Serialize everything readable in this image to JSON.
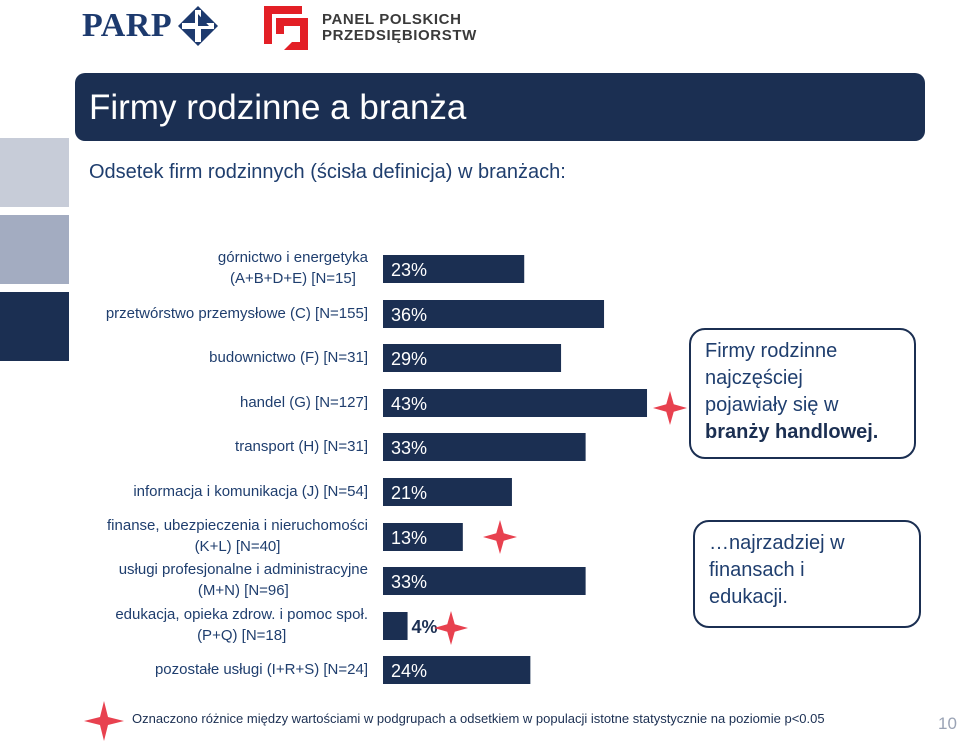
{
  "header": {
    "logo_parp": "PARP",
    "logo_panel_line1": "PANEL POLSKICH",
    "logo_panel_line2": "PRZEDSIĘBIORSTW"
  },
  "title": "Firmy rodzinne a branża",
  "subtitle": "Odsetek firm rodzinnych (ścisła definicja) w branżach:",
  "chart_data": {
    "type": "bar",
    "orientation": "horizontal",
    "categories": [
      [
        "górnictwo i energetyka",
        "(A+B+D+E) [N=15]"
      ],
      [
        "przetwórstwo przemysłowe (C) [N=155]"
      ],
      [
        "budownictwo (F) [N=31]"
      ],
      [
        "handel (G) [N=127]"
      ],
      [
        "transport (H) [N=31]"
      ],
      [
        "informacja i komunikacja (J) [N=54]"
      ],
      [
        "finanse, ubezpieczenia i nieruchomości",
        "(K+L) [N=40]"
      ],
      [
        "usługi profesjonalne i administracyjne",
        "(M+N) [N=96]"
      ],
      [
        "edukacja, opieka zdrow. i pomoc społ.",
        "(P+Q) [N=18]"
      ],
      [
        "pozostałe usługi (I+R+S) [N=24]"
      ]
    ],
    "values": [
      23,
      36,
      29,
      43,
      33,
      21,
      13,
      33,
      4,
      24
    ],
    "labels": [
      "23%",
      "36%",
      "29%",
      "43%",
      "33%",
      "21%",
      "13%",
      "33%",
      "4%",
      "24%"
    ],
    "unit": "%",
    "significant": [
      false,
      false,
      false,
      true,
      false,
      false,
      true,
      false,
      true,
      false
    ],
    "bar_color": "#1b2f52",
    "marker_color": "#e8414f",
    "title": "",
    "xlabel": "",
    "ylabel": ""
  },
  "callouts": {
    "top_lines": [
      "Firmy rodzinne",
      "najczęściej",
      "pojawiały się w"
    ],
    "top_bold": "branży handlowej.",
    "bottom_lines": [
      "…najrzadziej w",
      "finansach i",
      "edukacji."
    ]
  },
  "footnote": "Oznaczono różnice między wartościami w podgrupach a odsetkiem w populacji istotne statystycznie na poziomie p<0.05",
  "page_number": "10",
  "colors": {
    "navy": "#1b2f52",
    "accent_red": "#e8414f",
    "text_blue": "#1f3e6e"
  }
}
